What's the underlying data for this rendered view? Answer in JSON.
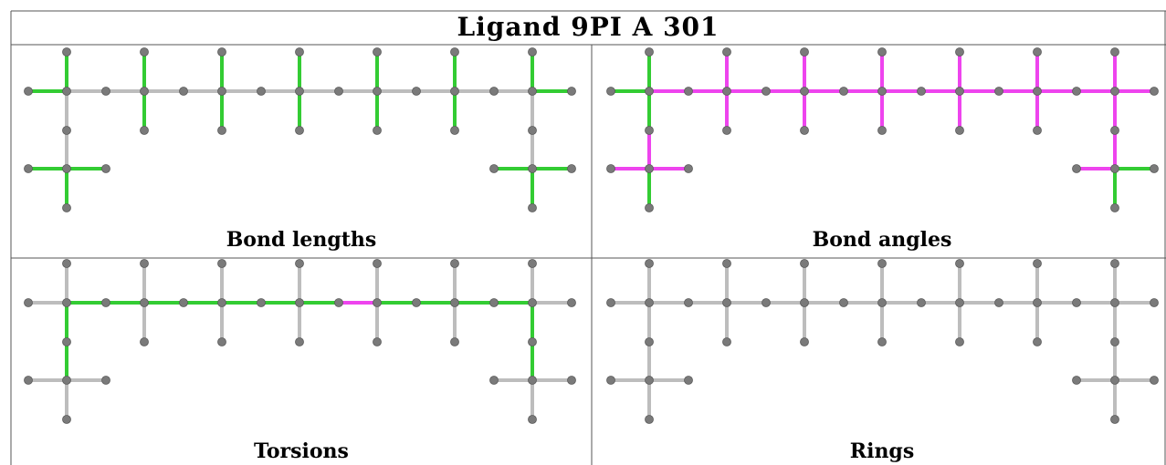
{
  "title": "Ligand 9PI A 301",
  "panels": [
    {
      "caption": "Bond lengths",
      "color": "#33cc33"
    },
    {
      "caption": "Bond angles",
      "color": "#ee44ee"
    },
    {
      "caption": "Torsions",
      "color": "#33cc33"
    },
    {
      "caption": "Rings",
      "color": "#bbbbbb"
    }
  ],
  "colors": {
    "green": "#33cc33",
    "magenta": "#ee44ee",
    "bond_grey": "#bdbdbd",
    "atom_grey": "#7a7a7a",
    "border": "#555555"
  }
}
